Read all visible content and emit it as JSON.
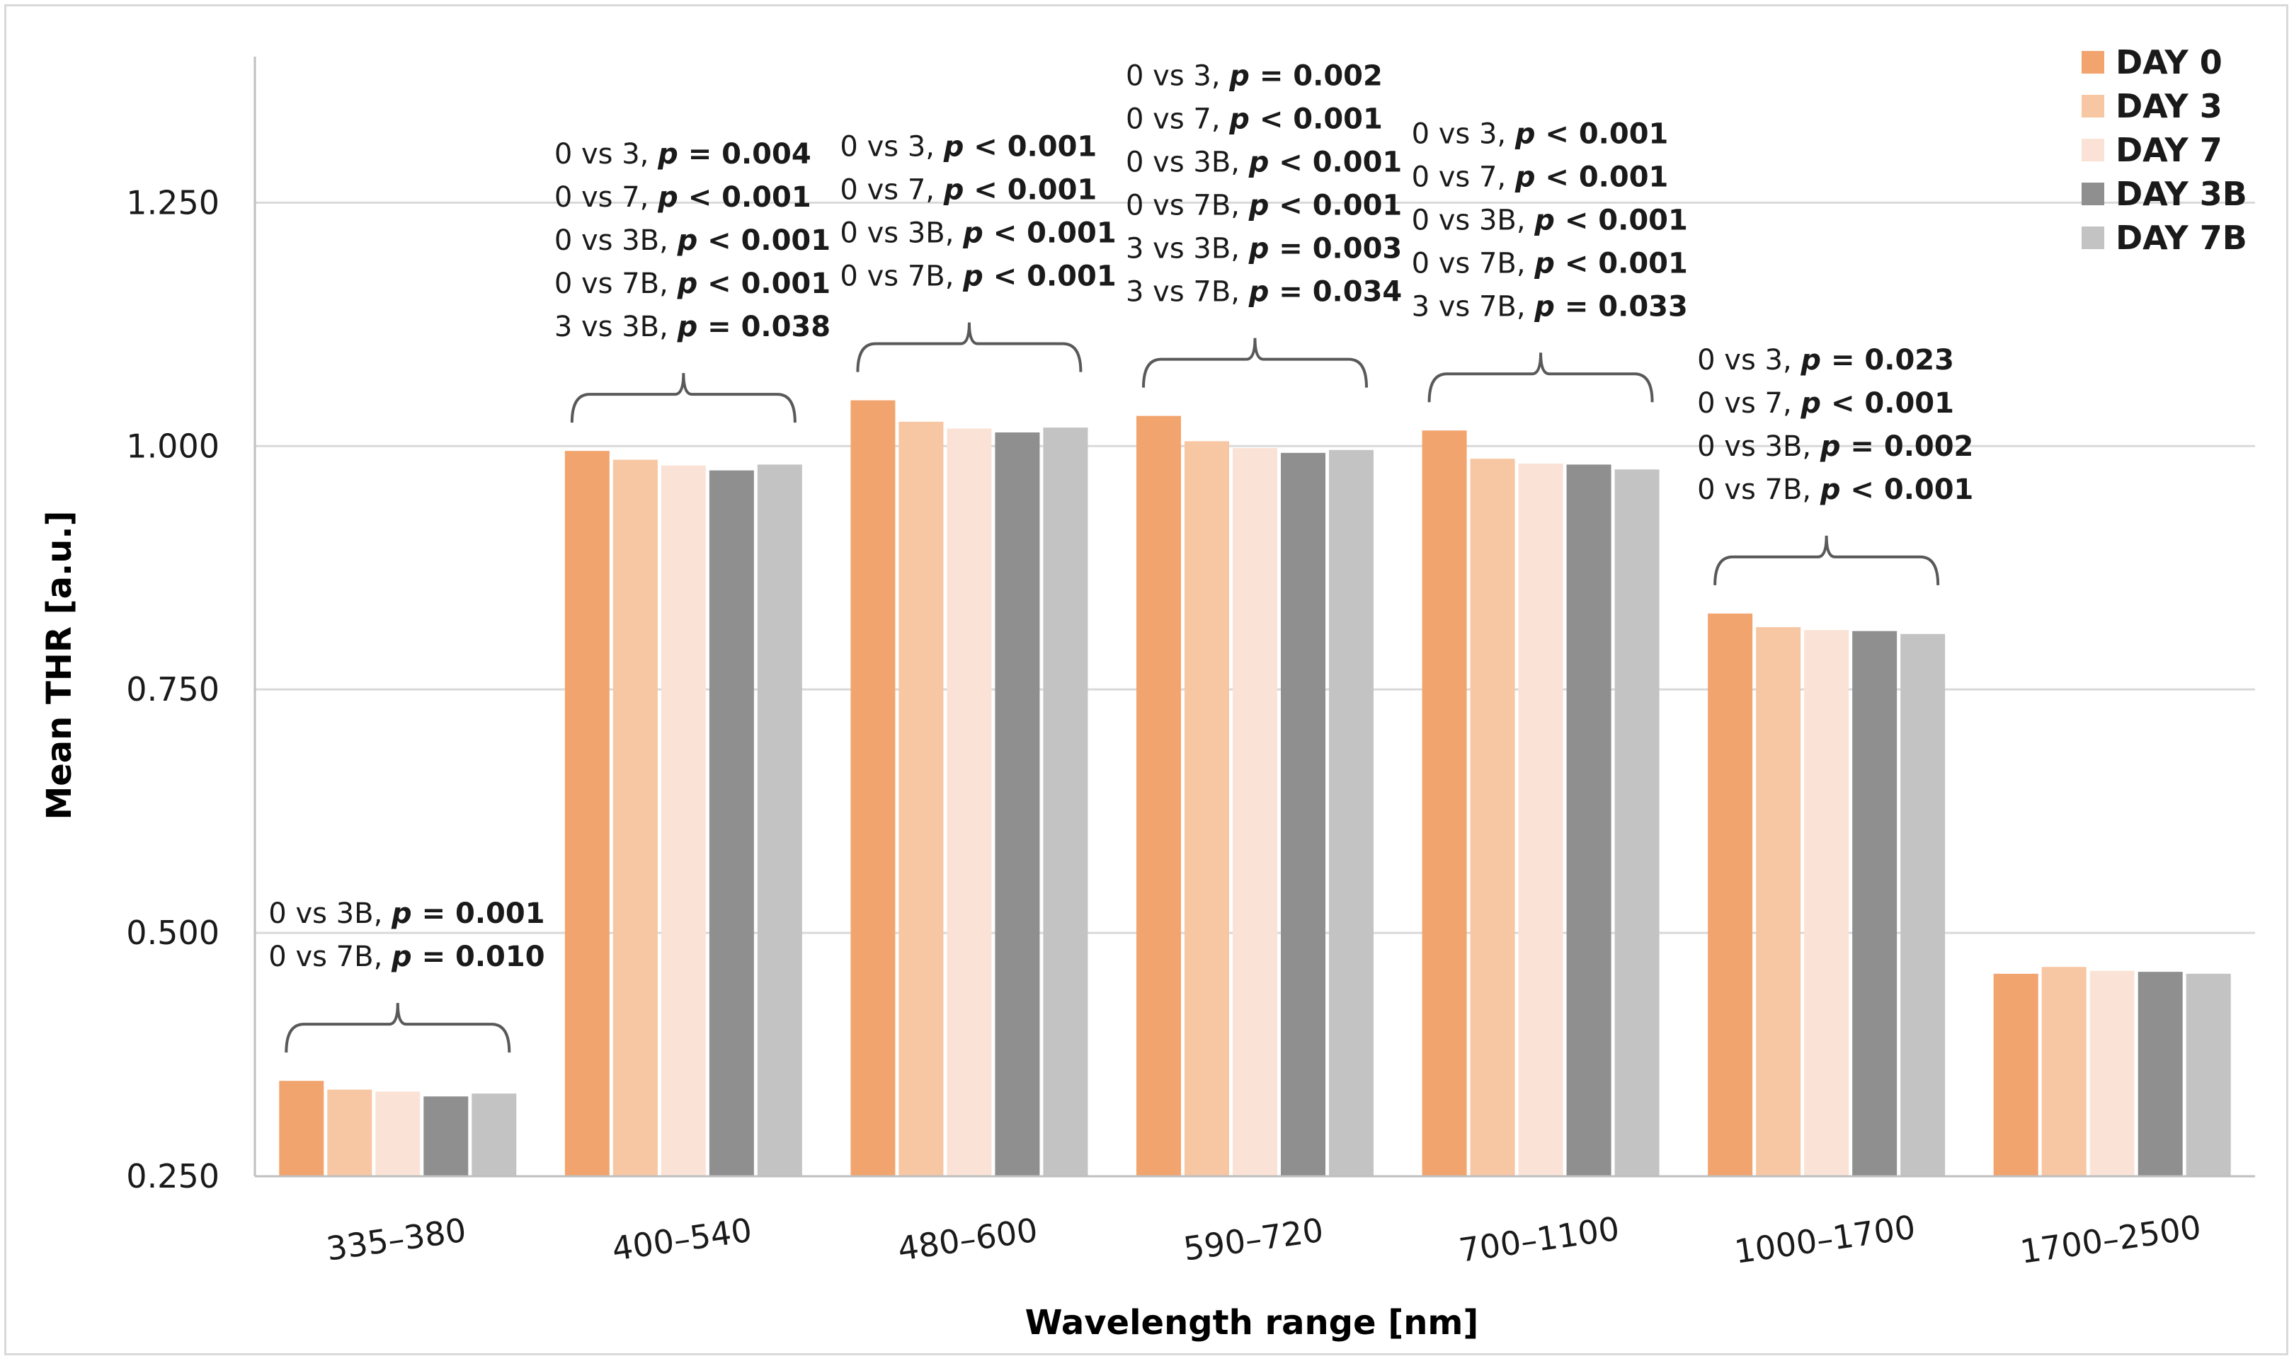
{
  "chart_data": {
    "type": "bar",
    "title": "",
    "xlabel": "Wavelength range [nm]",
    "ylabel": "Mean THR [a.u.]",
    "ylim": [
      0.25,
      1.4
    ],
    "yticks": [
      "0.250",
      "0.500",
      "0.750",
      "1.000",
      "1.250"
    ],
    "ytick_values": [
      0.25,
      0.5,
      0.75,
      1.0,
      1.25
    ],
    "grid": "horizontal",
    "legend_position": "top-right",
    "categories": [
      "335–380",
      "400–540",
      "480–600",
      "590–720",
      "700–1100",
      "1000–1700",
      "1700–2500"
    ],
    "series": [
      {
        "name": "DAY 0",
        "color": "#f2a46e",
        "values": [
          0.348,
          0.995,
          1.047,
          1.031,
          1.016,
          0.828,
          0.458
        ]
      },
      {
        "name": "DAY 3",
        "color": "#f7c6a3",
        "values": [
          0.339,
          0.986,
          1.025,
          1.005,
          0.987,
          0.814,
          0.465
        ]
      },
      {
        "name": "DAY 7",
        "color": "#fae3d6",
        "values": [
          0.337,
          0.98,
          1.018,
          0.998,
          0.982,
          0.811,
          0.461
        ]
      },
      {
        "name": "DAY 3B",
        "color": "#8f8f8f",
        "values": [
          0.332,
          0.975,
          1.014,
          0.993,
          0.981,
          0.81,
          0.46
        ]
      },
      {
        "name": "DAY 7B",
        "color": "#c3c3c3",
        "values": [
          0.335,
          0.981,
          1.019,
          0.996,
          0.976,
          0.807,
          0.458
        ]
      }
    ],
    "annotations": [
      {
        "category": "335–380",
        "lines": [
          {
            "comp": "0 vs 3B, ",
            "op": " = ",
            "val": "0.001"
          },
          {
            "comp": "0 vs 7B, ",
            "op": " = ",
            "val": "0.010"
          }
        ]
      },
      {
        "category": "400–540",
        "lines": [
          {
            "comp": "0 vs 3, ",
            "op": " = ",
            "val": "0.004"
          },
          {
            "comp": "0 vs 7, ",
            "op": " < ",
            "val": "0.001"
          },
          {
            "comp": "0 vs 3B, ",
            "op": " < ",
            "val": "0.001"
          },
          {
            "comp": "0 vs 7B, ",
            "op": " < ",
            "val": "0.001"
          },
          {
            "comp": "3 vs 3B, ",
            "op": " = ",
            "val": "0.038"
          }
        ]
      },
      {
        "category": "480–600",
        "lines": [
          {
            "comp": "0 vs 3, ",
            "op": " < ",
            "val": "0.001"
          },
          {
            "comp": "0 vs 7, ",
            "op": " < ",
            "val": "0.001"
          },
          {
            "comp": "0 vs 3B, ",
            "op": " < ",
            "val": "0.001"
          },
          {
            "comp": "0 vs 7B, ",
            "op": " < ",
            "val": "0.001"
          }
        ]
      },
      {
        "category": "590–720",
        "lines": [
          {
            "comp": "0 vs 3, ",
            "op": " = ",
            "val": "0.002"
          },
          {
            "comp": "0 vs 7, ",
            "op": " < ",
            "val": "0.001"
          },
          {
            "comp": "0 vs 3B, ",
            "op": " < ",
            "val": "0.001"
          },
          {
            "comp": "0 vs 7B, ",
            "op": " < ",
            "val": "0.001"
          },
          {
            "comp": "3 vs 3B, ",
            "op": " = ",
            "val": "0.003"
          },
          {
            "comp": "3 vs 7B, ",
            "op": " = ",
            "val": "0.034"
          }
        ]
      },
      {
        "category": "700–1100",
        "lines": [
          {
            "comp": "0 vs 3, ",
            "op": " < ",
            "val": "0.001"
          },
          {
            "comp": "0 vs 7, ",
            "op": " < ",
            "val": "0.001"
          },
          {
            "comp": "0 vs 3B, ",
            "op": " < ",
            "val": "0.001"
          },
          {
            "comp": "0 vs 7B, ",
            "op": " < ",
            "val": "0.001"
          },
          {
            "comp": "3 vs 7B, ",
            "op": " = ",
            "val": "0.033"
          }
        ]
      },
      {
        "category": "1000–1700",
        "lines": [
          {
            "comp": "0 vs 3, ",
            "op": " = ",
            "val": "0.023"
          },
          {
            "comp": "0 vs 7, ",
            "op": " < ",
            "val": "0.001"
          },
          {
            "comp": "0 vs 3B, ",
            "op": " = ",
            "val": "0.002"
          },
          {
            "comp": "0 vs 7B, ",
            "op": " < ",
            "val": "0.001"
          }
        ]
      }
    ],
    "p_symbol": "p"
  }
}
